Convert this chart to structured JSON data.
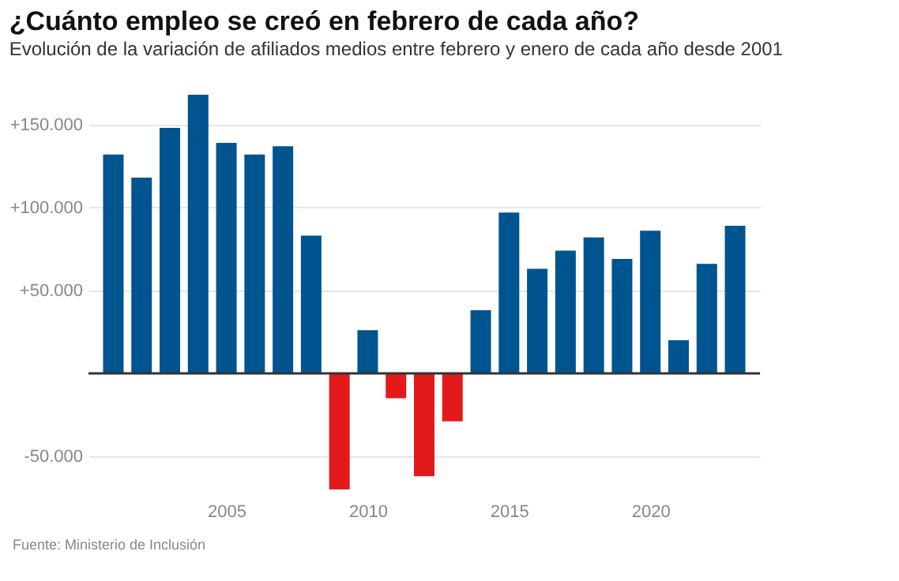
{
  "chart_data": {
    "type": "bar",
    "title": "¿Cuánto empleo se creó en febrero de cada año?",
    "subtitle": "Evolución de la variación de afiliados medios entre febrero y enero de cada año desde 2001",
    "x": [
      2001,
      2002,
      2003,
      2004,
      2005,
      2006,
      2007,
      2008,
      2009,
      2010,
      2011,
      2012,
      2013,
      2014,
      2015,
      2016,
      2017,
      2018,
      2019,
      2020,
      2021,
      2022,
      2023
    ],
    "values": [
      132000,
      118000,
      148000,
      168000,
      139000,
      132000,
      137000,
      83000,
      -70000,
      26000,
      -15000,
      -62000,
      -29000,
      38000,
      97000,
      63000,
      74000,
      82000,
      69000,
      86000,
      20000,
      66000,
      89000
    ],
    "colors": [
      "#00548f",
      "#00548f",
      "#00548f",
      "#00548f",
      "#00548f",
      "#00548f",
      "#00548f",
      "#00548f",
      "#e31a1c",
      "#00548f",
      "#e31a1c",
      "#e31a1c",
      "#e31a1c",
      "#00548f",
      "#00548f",
      "#00548f",
      "#00548f",
      "#00548f",
      "#00548f",
      "#00548f",
      "#00548f",
      "#00548f",
      "#00548f"
    ],
    "xlim": [
      2000.4,
      2023.6
    ],
    "xticks": [
      2005,
      2010,
      2015,
      2020
    ],
    "yticks": [
      {
        "value": -50000,
        "label": "-50.000"
      },
      {
        "value": 0,
        "label": null
      },
      {
        "value": 50000,
        "label": "+50.000"
      },
      {
        "value": 100000,
        "label": "+100.000"
      },
      {
        "value": 150000,
        "label": "+150.000"
      }
    ],
    "ylim": [
      -70000,
      168000
    ],
    "grid": "y",
    "ref_lines": [
      {
        "axis": "y",
        "value": 0,
        "color": "#333333"
      }
    ],
    "annotations": [
      "Fuente: Ministerio de Inclusión"
    ]
  }
}
